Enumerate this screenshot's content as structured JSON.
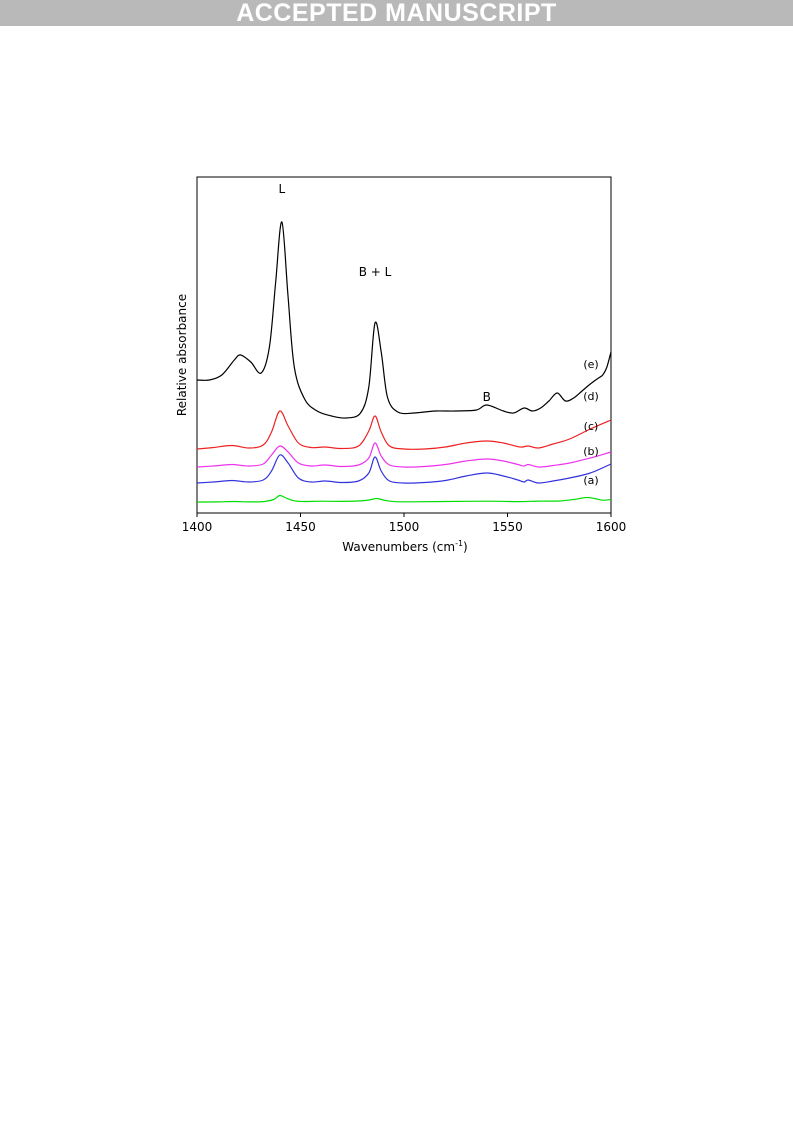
{
  "banner": "ACCEPTED MANUSCRIPT",
  "chart_data": {
    "type": "line",
    "xlabel": "Wavenumbers (cm",
    "xlabel_sup": "-1",
    "xlabel_end": ")",
    "ylabel": "Relative absorbance",
    "xlim": [
      1400,
      1600
    ],
    "xticks": [
      1400,
      1450,
      1500,
      1550,
      1600
    ],
    "y_units": "arbitrary (stacked, offset spectra)",
    "annotations": [
      {
        "text": "L",
        "x": 1441
      },
      {
        "text": "B + L",
        "x": 1486
      },
      {
        "text": "B",
        "x": 1540
      }
    ],
    "series": [
      {
        "name": "(a)",
        "color": "#00dd00",
        "offset": 0,
        "x": [
          1400,
          1410,
          1418,
          1425,
          1432,
          1437,
          1440,
          1443,
          1447,
          1452,
          1460,
          1470,
          1478,
          1483,
          1487,
          1491,
          1496,
          1505,
          1520,
          1540,
          1555,
          1565,
          1575,
          1582,
          1588,
          1592,
          1596,
          1600
        ],
        "y": [
          0,
          0.1,
          0.5,
          0.1,
          0.4,
          2.5,
          6.5,
          4,
          1.2,
          0.5,
          0.8,
          0.6,
          1,
          2,
          3.5,
          1.5,
          0.3,
          0.2,
          0.5,
          0.8,
          0.4,
          0.9,
          1,
          2.5,
          4.5,
          3.5,
          1.8,
          2.5
        ]
      },
      {
        "name": "(b)",
        "color": "#3333dd",
        "offset": 19,
        "x": [
          1400,
          1408,
          1417,
          1425,
          1432,
          1436,
          1440,
          1444,
          1449,
          1455,
          1462,
          1470,
          1478,
          1483,
          1486,
          1489,
          1493,
          1500,
          1510,
          1520,
          1530,
          1540,
          1548,
          1555,
          1558,
          1560,
          1565,
          1572,
          1580,
          1590,
          1600
        ],
        "y": [
          0,
          1,
          2.5,
          1,
          3,
          12,
          28,
          20,
          5,
          1,
          2,
          0.5,
          2,
          10,
          26,
          12,
          2,
          0,
          0.5,
          2.5,
          7,
          10,
          7,
          3,
          1,
          3,
          0,
          2,
          5,
          10,
          19
        ]
      },
      {
        "name": "(c)",
        "color": "#ee33ee",
        "offset": 35,
        "x": [
          1400,
          1408,
          1417,
          1425,
          1432,
          1436,
          1440,
          1444,
          1449,
          1455,
          1462,
          1470,
          1478,
          1483,
          1486,
          1489,
          1493,
          1500,
          1510,
          1520,
          1530,
          1540,
          1548,
          1555,
          1558,
          1560,
          1565,
          1572,
          1580,
          1590,
          1600
        ],
        "y": [
          0,
          1,
          2.5,
          1,
          3,
          12,
          21,
          15,
          4,
          1,
          2,
          0.5,
          2,
          9,
          24,
          11,
          2,
          0,
          0.5,
          2.5,
          6,
          8,
          6,
          2.5,
          1,
          2.5,
          0,
          1.5,
          4,
          9,
          15
        ]
      },
      {
        "name": "(d)",
        "color": "#ee2222",
        "offset": 53,
        "x": [
          1400,
          1408,
          1417,
          1425,
          1432,
          1436,
          1440,
          1444,
          1449,
          1455,
          1462,
          1470,
          1478,
          1483,
          1486,
          1489,
          1493,
          1500,
          1510,
          1520,
          1530,
          1540,
          1548,
          1556,
          1560,
          1565,
          1572,
          1580,
          1590,
          1600
        ],
        "y": [
          0,
          1.5,
          3.5,
          1,
          4,
          17,
          38,
          23,
          6,
          1.5,
          2,
          0.5,
          3,
          18,
          33,
          17,
          3,
          0,
          0,
          2,
          6,
          8,
          6,
          2,
          3,
          1,
          5,
          10,
          20,
          29
        ]
      },
      {
        "name": "(e)",
        "color": "#000000",
        "offset": 95,
        "x": [
          1400,
          1406,
          1412,
          1418,
          1421,
          1426,
          1431,
          1435,
          1438,
          1441,
          1444,
          1447,
          1452,
          1458,
          1465,
          1472,
          1479,
          1483,
          1486,
          1489,
          1492,
          1497,
          1505,
          1515,
          1525,
          1535,
          1540,
          1548,
          1553,
          1558,
          1562,
          1566,
          1570,
          1574,
          1578,
          1582,
          1586,
          1590,
          1594,
          1596,
          1598,
          1600
        ],
        "y": [
          27,
          27,
          32,
          47,
          52,
          45,
          34,
          60,
          125,
          185,
          110,
          40,
          8,
          -4,
          -9,
          -11,
          -6,
          20,
          84,
          55,
          10,
          -5,
          -6,
          -4,
          -4,
          -3,
          2,
          -4,
          -6,
          -1,
          -4,
          -1,
          6,
          14,
          6,
          9,
          16,
          23,
          29,
          32,
          40,
          55
        ]
      }
    ],
    "legend_labels": [
      "(e)",
      "(d)",
      "(c)",
      "(b)",
      "(a)"
    ]
  }
}
